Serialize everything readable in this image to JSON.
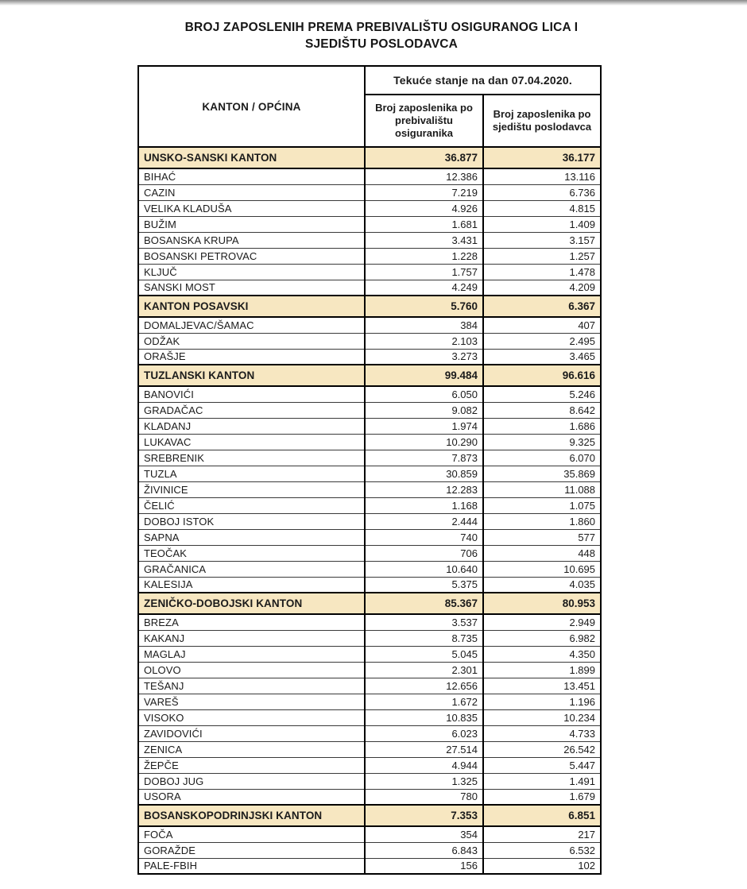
{
  "title": {
    "line1": "BROJ ZAPOSLENIH PREMA PREBIVALIŠTU OSIGURANOG LICA I",
    "line2": "SJEDIŠTU POSLODAVCA"
  },
  "table": {
    "corner_header": "KANTON / OPĆINA",
    "spanning_header": "Tekuće stanje na dan 07.04.2020.",
    "col_residence_header": "Broj zaposlenika po prebivalištu osiguranika",
    "col_employer_header": "Broj zaposlenika po sjedištu poslodavca",
    "rows": [
      {
        "type": "section",
        "name": "UNSKO-SANSKI KANTON",
        "residence": "36.877",
        "employer": "36.177"
      },
      {
        "type": "muni",
        "name": "BIHAĆ",
        "residence": "12.386",
        "employer": "13.116"
      },
      {
        "type": "muni",
        "name": "CAZIN",
        "residence": "7.219",
        "employer": "6.736"
      },
      {
        "type": "muni",
        "name": "VELIKA KLADUŠA",
        "residence": "4.926",
        "employer": "4.815"
      },
      {
        "type": "muni",
        "name": "BUŽIM",
        "residence": "1.681",
        "employer": "1.409"
      },
      {
        "type": "muni",
        "name": "BOSANSKA KRUPA",
        "residence": "3.431",
        "employer": "3.157"
      },
      {
        "type": "muni",
        "name": "BOSANSKI PETROVAC",
        "residence": "1.228",
        "employer": "1.257"
      },
      {
        "type": "muni",
        "name": "KLJUČ",
        "residence": "1.757",
        "employer": "1.478"
      },
      {
        "type": "muni",
        "name": "SANSKI MOST",
        "residence": "4.249",
        "employer": "4.209"
      },
      {
        "type": "section",
        "name": "KANTON POSAVSKI",
        "residence": "5.760",
        "employer": "6.367"
      },
      {
        "type": "muni",
        "name": "DOMALJEVAC/ŠAMAC",
        "residence": "384",
        "employer": "407"
      },
      {
        "type": "muni",
        "name": "ODŽAK",
        "residence": "2.103",
        "employer": "2.495"
      },
      {
        "type": "muni",
        "name": "ORAŠJE",
        "residence": "3.273",
        "employer": "3.465"
      },
      {
        "type": "section",
        "name": "TUZLANSKI KANTON",
        "residence": "99.484",
        "employer": "96.616"
      },
      {
        "type": "muni",
        "name": "BANOVIĆI",
        "residence": "6.050",
        "employer": "5.246"
      },
      {
        "type": "muni",
        "name": "GRADAČAC",
        "residence": "9.082",
        "employer": "8.642"
      },
      {
        "type": "muni",
        "name": "KLADANJ",
        "residence": "1.974",
        "employer": "1.686"
      },
      {
        "type": "muni",
        "name": "LUKAVAC",
        "residence": "10.290",
        "employer": "9.325"
      },
      {
        "type": "muni",
        "name": "SREBRENIK",
        "residence": "7.873",
        "employer": "6.070"
      },
      {
        "type": "muni",
        "name": "TUZLA",
        "residence": "30.859",
        "employer": "35.869"
      },
      {
        "type": "muni",
        "name": "ŽIVINICE",
        "residence": "12.283",
        "employer": "11.088"
      },
      {
        "type": "muni",
        "name": "ČELIĆ",
        "residence": "1.168",
        "employer": "1.075"
      },
      {
        "type": "muni",
        "name": "DOBOJ ISTOK",
        "residence": "2.444",
        "employer": "1.860"
      },
      {
        "type": "muni",
        "name": "SAPNA",
        "residence": "740",
        "employer": "577"
      },
      {
        "type": "muni",
        "name": "TEOČAK",
        "residence": "706",
        "employer": "448"
      },
      {
        "type": "muni",
        "name": "GRAČANICA",
        "residence": "10.640",
        "employer": "10.695"
      },
      {
        "type": "muni",
        "name": "KALESIJA",
        "residence": "5.375",
        "employer": "4.035"
      },
      {
        "type": "section",
        "name": "ZENIČKO-DOBOJSKI KANTON",
        "residence": "85.367",
        "employer": "80.953"
      },
      {
        "type": "muni",
        "name": "BREZA",
        "residence": "3.537",
        "employer": "2.949"
      },
      {
        "type": "muni",
        "name": "KAKANJ",
        "residence": "8.735",
        "employer": "6.982"
      },
      {
        "type": "muni",
        "name": "MAGLAJ",
        "residence": "5.045",
        "employer": "4.350"
      },
      {
        "type": "muni",
        "name": "OLOVO",
        "residence": "2.301",
        "employer": "1.899"
      },
      {
        "type": "muni",
        "name": "TEŠANJ",
        "residence": "12.656",
        "employer": "13.451"
      },
      {
        "type": "muni",
        "name": "VAREŠ",
        "residence": "1.672",
        "employer": "1.196"
      },
      {
        "type": "muni",
        "name": "VISOKO",
        "residence": "10.835",
        "employer": "10.234"
      },
      {
        "type": "muni",
        "name": "ZAVIDOVIĆI",
        "residence": "6.023",
        "employer": "4.733"
      },
      {
        "type": "muni",
        "name": "ZENICA",
        "residence": "27.514",
        "employer": "26.542"
      },
      {
        "type": "muni",
        "name": "ŽEPČE",
        "residence": "4.944",
        "employer": "5.447"
      },
      {
        "type": "muni",
        "name": "DOBOJ JUG",
        "residence": "1.325",
        "employer": "1.491"
      },
      {
        "type": "muni",
        "name": "USORA",
        "residence": "780",
        "employer": "1.679"
      },
      {
        "type": "section",
        "name": "BOSANSKOPODRINJSKI KANTON",
        "residence": "7.353",
        "employer": "6.851"
      },
      {
        "type": "muni",
        "name": "FOČA",
        "residence": "354",
        "employer": "217"
      },
      {
        "type": "muni",
        "name": "GORAŽDE",
        "residence": "6.843",
        "employer": "6.532"
      },
      {
        "type": "muni",
        "name": "PALE-FBIH",
        "residence": "156",
        "employer": "102"
      }
    ]
  },
  "colors": {
    "section_row_bg": "#F7E7C1",
    "row_bg": "#FFFFFF",
    "border_thick": "#000000",
    "border_thin": "#3A3A3A",
    "text": "#1B1B1B"
  }
}
